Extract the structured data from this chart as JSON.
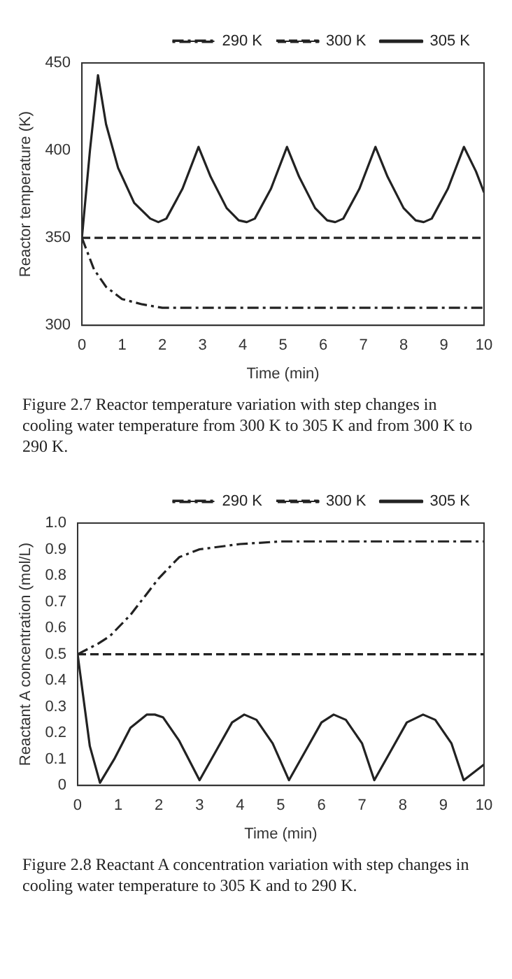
{
  "chart_data": [
    {
      "type": "line",
      "ylabel": "Reactor temperature (K)",
      "xlabel": "Time (min)",
      "xlim": [
        0,
        10
      ],
      "xticks": [
        0,
        1,
        2,
        3,
        4,
        5,
        6,
        7,
        8,
        9,
        10
      ],
      "ylim": [
        300,
        450
      ],
      "yticks": [
        300,
        350,
        400,
        450
      ],
      "grid": false,
      "legend": "top right",
      "marker": "none",
      "annotations": [
        "Figure 2.7 Reactor temperature variation with step changes in cooling water temperature from 300 K to 305 K and from 300 K to 290 K."
      ],
      "series": [
        {
          "name": "290 K",
          "color": "#222222",
          "line_style": "dashdot",
          "x": [
            0,
            0.3,
            0.6,
            1,
            1.5,
            2,
            3,
            10
          ],
          "values": [
            350,
            332,
            322,
            315,
            312,
            310,
            310,
            310
          ]
        },
        {
          "name": "300 K",
          "color": "#222222",
          "line_style": "dashed",
          "x": [
            0,
            10
          ],
          "values": [
            350,
            350
          ]
        },
        {
          "name": "305 K",
          "color": "#222222",
          "line_style": "solid",
          "x": [
            0,
            0.2,
            0.4,
            0.6,
            0.9,
            1.3,
            1.7,
            1.9,
            2.1,
            2.5,
            2.9,
            3.2,
            3.6,
            3.9,
            4.1,
            4.3,
            4.7,
            5.1,
            5.4,
            5.8,
            6.1,
            6.3,
            6.5,
            6.9,
            7.3,
            7.6,
            8.0,
            8.3,
            8.5,
            8.7,
            9.1,
            9.5,
            9.8,
            10
          ],
          "values": [
            350,
            400,
            443,
            415,
            390,
            370,
            361,
            359,
            361,
            378,
            402,
            385,
            367,
            360,
            359,
            361,
            378,
            402,
            385,
            367,
            360,
            359,
            361,
            378,
            402,
            385,
            367,
            360,
            359,
            361,
            378,
            402,
            388,
            376
          ]
        }
      ]
    },
    {
      "type": "line",
      "ylabel": "Reactant A concentration (mol/L)",
      "xlabel": "Time (min)",
      "xlim": [
        0,
        10
      ],
      "xticks": [
        0,
        1,
        2,
        3,
        4,
        5,
        6,
        7,
        8,
        9,
        10
      ],
      "ylim": [
        0,
        1
      ],
      "yticks": [
        0,
        0.1,
        0.2,
        0.3,
        0.4,
        0.5,
        0.6,
        0.7,
        0.8,
        0.9,
        {
          "value": 1,
          "label": "1.0"
        }
      ],
      "grid": false,
      "legend": "top right",
      "marker": "none",
      "annotations": [
        "Figure 2.8 Reactant A concentration variation with step changes in cooling water temperature to 305 K and to 290 K."
      ],
      "series": [
        {
          "name": "290 K",
          "color": "#222222",
          "line_style": "dashdot",
          "x": [
            0,
            0.5,
            0.8,
            1.3,
            2,
            2.5,
            3,
            4,
            5,
            6,
            8,
            10
          ],
          "values": [
            0.5,
            0.54,
            0.57,
            0.65,
            0.79,
            0.87,
            0.9,
            0.92,
            0.93,
            0.93,
            0.93,
            0.93
          ]
        },
        {
          "name": "300 K",
          "color": "#222222",
          "line_style": "dashed",
          "x": [
            0,
            10
          ],
          "values": [
            0.5,
            0.5
          ]
        },
        {
          "name": "305 K",
          "color": "#222222",
          "line_style": "solid",
          "x": [
            0,
            0.3,
            0.55,
            0.9,
            1.3,
            1.7,
            1.9,
            2.1,
            2.5,
            3.0,
            3.4,
            3.8,
            4.1,
            4.4,
            4.8,
            5.2,
            5.6,
            6.0,
            6.3,
            6.6,
            7.0,
            7.3,
            7.7,
            8.1,
            8.5,
            8.8,
            9.2,
            9.5,
            10
          ],
          "values": [
            0.5,
            0.15,
            0.01,
            0.1,
            0.22,
            0.27,
            0.27,
            0.26,
            0.17,
            0.02,
            0.13,
            0.24,
            0.27,
            0.25,
            0.16,
            0.02,
            0.13,
            0.24,
            0.27,
            0.25,
            0.16,
            0.02,
            0.13,
            0.24,
            0.27,
            0.25,
            0.16,
            0.02,
            0.08
          ]
        }
      ]
    }
  ]
}
